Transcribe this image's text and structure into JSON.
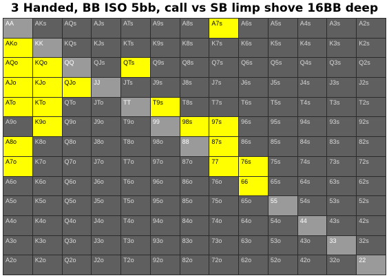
{
  "title": "3 Handed, BB ISO 5bb, call vs SB limp shove 16BB deep",
  "colors": {
    "play": "#ffff00",
    "fold_pair": "#9a9a9a",
    "fold": "#5f5f5f",
    "grid_line": "#2b2b2b"
  },
  "ranks": [
    "A",
    "K",
    "Q",
    "J",
    "T",
    "9",
    "8",
    "7",
    "6",
    "5",
    "4",
    "3",
    "2"
  ],
  "grid": [
    [
      "AA",
      "AKs",
      "AQs",
      "AJs",
      "ATs",
      "A9s",
      "A8s",
      "A7s",
      "A6s",
      "A5s",
      "A4s",
      "A3s",
      "A2s"
    ],
    [
      "AKo",
      "KK",
      "KQs",
      "KJs",
      "KTs",
      "K9s",
      "K8s",
      "K7s",
      "K6s",
      "K5s",
      "K4s",
      "K3s",
      "K2s"
    ],
    [
      "AQo",
      "KQo",
      "QQ",
      "QJs",
      "QTs",
      "Q9s",
      "Q8s",
      "Q7s",
      "Q6s",
      "Q5s",
      "Q4s",
      "Q3s",
      "Q2s"
    ],
    [
      "AJo",
      "KJo",
      "QJo",
      "JJ",
      "JTs",
      "J9s",
      "J8s",
      "J7s",
      "J6s",
      "J5s",
      "J4s",
      "J3s",
      "J2s"
    ],
    [
      "ATo",
      "KTo",
      "QTo",
      "JTo",
      "TT",
      "T9s",
      "T8s",
      "T7s",
      "T6s",
      "T5s",
      "T4s",
      "T3s",
      "T2s"
    ],
    [
      "A9o",
      "K9o",
      "Q9o",
      "J9o",
      "T9o",
      "99",
      "98s",
      "97s",
      "96s",
      "95s",
      "94s",
      "93s",
      "92s"
    ],
    [
      "A8o",
      "K8o",
      "Q8o",
      "J8o",
      "T8o",
      "98o",
      "88",
      "87s",
      "86s",
      "85s",
      "84s",
      "83s",
      "82s"
    ],
    [
      "A7o",
      "K7o",
      "Q7o",
      "J7o",
      "T7o",
      "97o",
      "87o",
      "77",
      "76s",
      "75s",
      "74s",
      "73s",
      "72s"
    ],
    [
      "A6o",
      "K6o",
      "Q6o",
      "J6o",
      "T6o",
      "96o",
      "86o",
      "76o",
      "66",
      "65s",
      "64s",
      "63s",
      "62s"
    ],
    [
      "A5o",
      "K5o",
      "Q5o",
      "J5o",
      "T5o",
      "95o",
      "85o",
      "75o",
      "65o",
      "55",
      "54s",
      "53s",
      "52s"
    ],
    [
      "A4o",
      "K4o",
      "Q4o",
      "J4o",
      "T4o",
      "94o",
      "84o",
      "74o",
      "64o",
      "54o",
      "44",
      "43s",
      "42s"
    ],
    [
      "A3o",
      "K3o",
      "Q3o",
      "J3o",
      "T3o",
      "93o",
      "83o",
      "73o",
      "63o",
      "53o",
      "43o",
      "33",
      "32s"
    ],
    [
      "A2o",
      "K2o",
      "Q2o",
      "J2o",
      "T2o",
      "92o",
      "82o",
      "72o",
      "62o",
      "52o",
      "42o",
      "32o",
      "22"
    ]
  ],
  "calling_hands": [
    "A7s",
    "AKo",
    "AQo",
    "KQo",
    "QTs",
    "AJo",
    "KJo",
    "QJo",
    "ATo",
    "KTo",
    "T9s",
    "K9o",
    "98s",
    "97s",
    "A8o",
    "87s",
    "A7o",
    "77",
    "76s",
    "66"
  ]
}
